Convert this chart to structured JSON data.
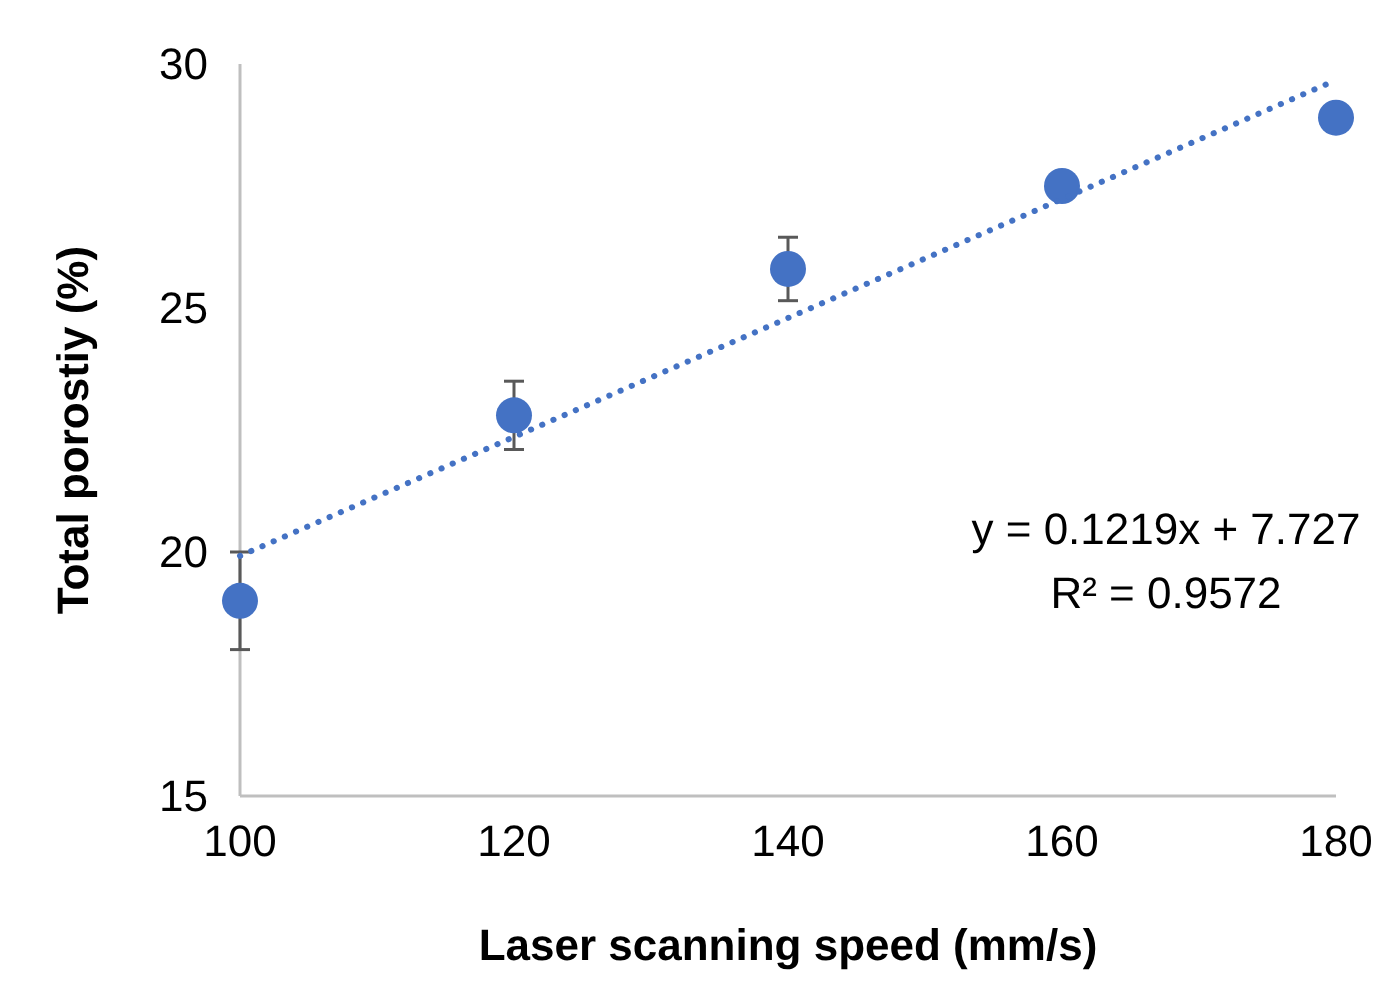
{
  "chart_data": {
    "type": "scatter",
    "xlabel": "Laser scanning speed (mm/s)",
    "ylabel": "Total porostiy (%)",
    "x": [
      100,
      120,
      140,
      160,
      180
    ],
    "xlim": [
      100,
      180
    ],
    "xticks": [
      100,
      120,
      140,
      160,
      180
    ],
    "ylim": [
      15,
      30
    ],
    "yticks": [
      15,
      20,
      25,
      30
    ],
    "grid": false,
    "marker": "circle",
    "series": [
      {
        "color": "#4472c4",
        "values": [
          19.0,
          22.8,
          25.8,
          27.5,
          28.9
        ],
        "errors": [
          1.0,
          0.7,
          0.65,
          null,
          null
        ]
      },
      {
        "type": "line",
        "color": "#4472c4",
        "line_style": "dotted",
        "marker": "none",
        "x": [
          100,
          180
        ],
        "values": [
          19.92,
          29.67
        ]
      }
    ],
    "annotations": [
      "y = 0.1219x + 7.727",
      "R² = 0.9572"
    ]
  }
}
